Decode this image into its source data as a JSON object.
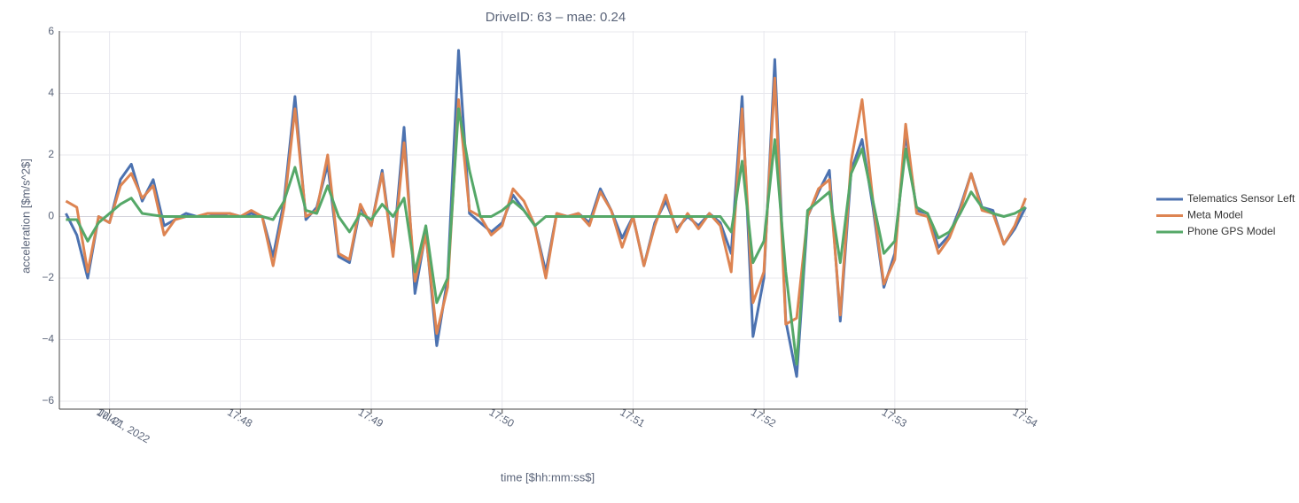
{
  "chart_data": {
    "type": "line",
    "title": "DriveID: 63 – mae: 0.24",
    "x_label": "time [$hh:mm:ss$]",
    "y_label": "acceleration [$m/s^2$]",
    "x_date_label": "Jul 21, 2022",
    "x": [
      "17:46:40",
      "17:46:45",
      "17:46:50",
      "17:46:55",
      "17:47:00",
      "17:47:05",
      "17:47:10",
      "17:47:15",
      "17:47:20",
      "17:47:25",
      "17:47:30",
      "17:47:35",
      "17:47:40",
      "17:47:45",
      "17:47:50",
      "17:47:55",
      "17:48:00",
      "17:48:05",
      "17:48:10",
      "17:48:15",
      "17:48:20",
      "17:48:25",
      "17:48:30",
      "17:48:35",
      "17:48:40",
      "17:48:45",
      "17:48:50",
      "17:48:55",
      "17:49:00",
      "17:49:05",
      "17:49:10",
      "17:49:15",
      "17:49:20",
      "17:49:25",
      "17:49:30",
      "17:49:35",
      "17:49:40",
      "17:49:45",
      "17:49:50",
      "17:49:55",
      "17:50:00",
      "17:50:05",
      "17:50:10",
      "17:50:15",
      "17:50:20",
      "17:50:25",
      "17:50:30",
      "17:50:35",
      "17:50:40",
      "17:50:45",
      "17:50:50",
      "17:50:55",
      "17:51:00",
      "17:51:05",
      "17:51:10",
      "17:51:15",
      "17:51:20",
      "17:51:25",
      "17:51:30",
      "17:51:35",
      "17:51:40",
      "17:51:45",
      "17:51:50",
      "17:51:55",
      "17:52:00",
      "17:52:05",
      "17:52:10",
      "17:52:15",
      "17:52:20",
      "17:52:25",
      "17:52:30",
      "17:52:35",
      "17:52:40",
      "17:52:45",
      "17:52:50",
      "17:52:55",
      "17:53:00",
      "17:53:05",
      "17:53:10",
      "17:53:15",
      "17:53:20",
      "17:53:25",
      "17:53:30",
      "17:53:35",
      "17:53:40",
      "17:53:45",
      "17:53:50",
      "17:53:55",
      "17:54:00"
    ],
    "series": [
      {
        "name": "Telematics Sensor Left",
        "color": "#4c72b0",
        "values": [
          0.1,
          -0.6,
          -2.0,
          0,
          -0.2,
          1.2,
          1.7,
          0.5,
          1.2,
          -0.3,
          -0.1,
          0.1,
          0,
          0,
          0.05,
          0.1,
          0,
          0.1,
          0,
          -1.3,
          0.5,
          3.9,
          -0.1,
          0.3,
          1.7,
          -1.3,
          -1.5,
          0.3,
          -0.3,
          1.5,
          -1.2,
          2.9,
          -2.5,
          -0.5,
          -4.2,
          -2.0,
          5.4,
          0.1,
          -0.2,
          -0.5,
          -0.2,
          0.7,
          0.2,
          -0.3,
          -1.8,
          0.1,
          0,
          0.1,
          -0.2,
          0.9,
          0.2,
          -0.7,
          0,
          -1.6,
          -0.2,
          0.5,
          -0.4,
          0,
          -0.3,
          0.1,
          -0.2,
          -1.2,
          3.9,
          -3.9,
          -2.0,
          5.1,
          -3.4,
          -5.2,
          0,
          0.8,
          1.5,
          -3.4,
          1.5,
          2.5,
          0.3,
          -2.3,
          -1.2,
          2.7,
          0.2,
          0.1,
          -1.0,
          -0.6,
          0.3,
          1.4,
          0.3,
          0.2,
          -0.9,
          -0.4,
          0.3
        ]
      },
      {
        "name": "Meta Model",
        "color": "#dd8452",
        "values": [
          0.5,
          0.3,
          -1.8,
          0,
          -0.2,
          1.0,
          1.4,
          0.6,
          1.0,
          -0.6,
          -0.1,
          0,
          0,
          0.1,
          0.1,
          0.1,
          0,
          0.2,
          0,
          -1.6,
          0.3,
          3.5,
          0,
          0.2,
          2.0,
          -1.2,
          -1.4,
          0.4,
          -0.3,
          1.4,
          -1.3,
          2.4,
          -2.1,
          -0.6,
          -3.8,
          -2.3,
          3.8,
          0.2,
          0,
          -0.6,
          -0.3,
          0.9,
          0.5,
          -0.3,
          -2.0,
          0.1,
          0,
          0.1,
          -0.3,
          0.8,
          0.2,
          -1.0,
          0,
          -1.6,
          -0.3,
          0.7,
          -0.5,
          0.1,
          -0.4,
          0.1,
          -0.3,
          -1.8,
          3.5,
          -2.8,
          -1.8,
          4.5,
          -3.5,
          -3.3,
          0,
          0.9,
          1.2,
          -3.2,
          1.8,
          3.8,
          0.5,
          -2.2,
          -1.4,
          3.0,
          0.1,
          0,
          -1.2,
          -0.7,
          0.2,
          1.4,
          0.2,
          0.1,
          -0.9,
          -0.3,
          0.6
        ]
      },
      {
        "name": "Phone GPS Model",
        "color": "#55a868",
        "values": [
          -0.1,
          -0.1,
          -0.8,
          -0.2,
          0.1,
          0.4,
          0.6,
          0.1,
          0.05,
          0,
          0,
          0,
          0,
          0,
          0,
          0,
          0,
          0,
          0,
          -0.1,
          0.5,
          1.6,
          0.2,
          0.1,
          1.0,
          0,
          -0.5,
          0.1,
          -0.1,
          0.4,
          0,
          0.6,
          -1.8,
          -0.3,
          -2.8,
          -2.0,
          3.5,
          1.5,
          0,
          0,
          0.2,
          0.5,
          0.2,
          -0.3,
          0,
          0,
          0,
          0,
          0,
          0,
          0,
          0,
          0,
          0,
          0,
          0,
          0,
          0,
          0,
          0,
          0,
          -0.5,
          1.8,
          -1.5,
          -0.8,
          2.5,
          -1.8,
          -4.8,
          0.2,
          0.5,
          0.8,
          -1.5,
          1.4,
          2.2,
          0.5,
          -1.2,
          -0.8,
          2.2,
          0.3,
          0.1,
          -0.7,
          -0.5,
          0.1,
          0.8,
          0.3,
          0.1,
          0,
          0.1,
          0.3
        ]
      }
    ],
    "xlim": [
      "17:46:37",
      "17:54:01"
    ],
    "xticks": [
      {
        "value": "17:47:00",
        "label": "17:47"
      },
      {
        "value": "17:48:00",
        "label": "17:48"
      },
      {
        "value": "17:49:00",
        "label": "17:49"
      },
      {
        "value": "17:50:00",
        "label": "17:50"
      },
      {
        "value": "17:51:00",
        "label": "17:51"
      },
      {
        "value": "17:52:00",
        "label": "17:52"
      },
      {
        "value": "17:53:00",
        "label": "17:53"
      },
      {
        "value": "17:54:00",
        "label": "17:54"
      }
    ],
    "ylim": [
      -6.26,
      6.03
    ],
    "yticks": [
      {
        "value": -6,
        "label": "−6"
      },
      {
        "value": -4,
        "label": "−4"
      },
      {
        "value": -2,
        "label": "−2"
      },
      0,
      2,
      4,
      6
    ],
    "grid": true,
    "legend": "right"
  }
}
